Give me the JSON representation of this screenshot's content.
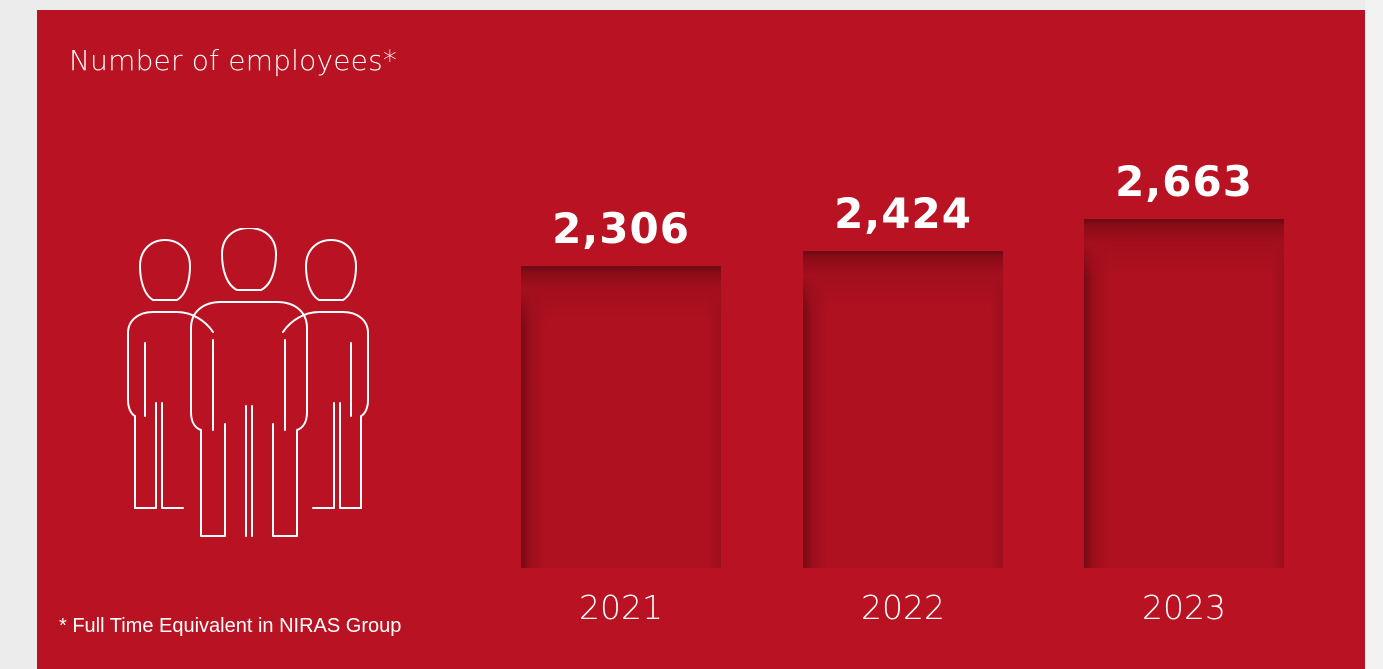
{
  "chart_data": {
    "type": "bar",
    "title": "Number of employees*",
    "categories": [
      "2021",
      "2022",
      "2023"
    ],
    "values": [
      2306,
      2424,
      2663
    ],
    "value_labels": [
      "2,306",
      "2,424",
      "2,663"
    ],
    "footnote": "* Full Time Equivalent in NIRAS Group",
    "grid": false,
    "legend": "none",
    "icon": "people-group-icon",
    "colors": {
      "background": "#b91222",
      "text": "#ffffff"
    }
  }
}
